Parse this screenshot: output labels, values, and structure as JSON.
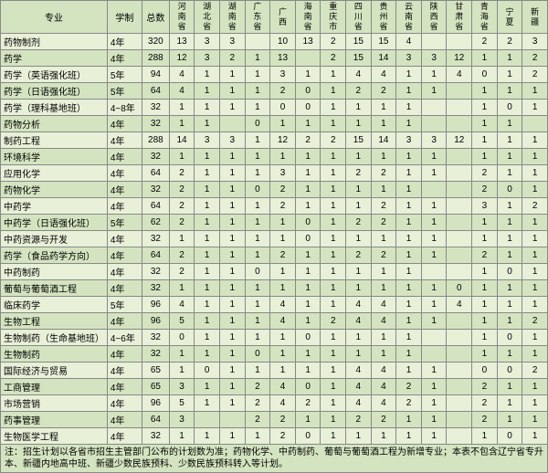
{
  "colors": {
    "even_row": "#e8f0d8",
    "odd_row": "#d4e4c0",
    "header_bg": "#d4e4c0",
    "note_bg": "#d4e4c0",
    "border": "#888888",
    "text": "#000000"
  },
  "headers": {
    "major": "专业",
    "duration": "学制",
    "total": "总数",
    "provinces": [
      "河南省",
      "湖北省",
      "湖南省",
      "广东省",
      "广西",
      "海南省",
      "重庆市",
      "四川省",
      "贵州省",
      "云南省",
      "陕西省",
      "甘肃省",
      "青海省",
      "宁夏",
      "新疆"
    ]
  },
  "rows": [
    {
      "major": "药物制剂",
      "dur": "4年",
      "total": 320,
      "vals": [
        13,
        3,
        3,
        "",
        10,
        13,
        2,
        15,
        15,
        4,
        "",
        "",
        2,
        2,
        3
      ]
    },
    {
      "major": "药学",
      "dur": "4年",
      "total": 288,
      "vals": [
        12,
        3,
        2,
        1,
        13,
        "",
        2,
        15,
        14,
        3,
        3,
        12,
        1,
        1,
        2
      ]
    },
    {
      "major": "药学（英语强化班）",
      "dur": "5年",
      "total": 94,
      "vals": [
        4,
        1,
        1,
        1,
        3,
        1,
        1,
        4,
        4,
        1,
        1,
        4,
        0,
        1,
        2
      ]
    },
    {
      "major": "药学（日语强化班）",
      "dur": "5年",
      "total": 64,
      "vals": [
        4,
        1,
        1,
        1,
        2,
        0,
        1,
        2,
        2,
        1,
        1,
        "",
        1,
        1,
        1
      ]
    },
    {
      "major": "药学（理科基地班）",
      "dur": "4~8年",
      "total": 32,
      "vals": [
        1,
        1,
        1,
        1,
        0,
        0,
        1,
        1,
        1,
        1,
        "",
        "",
        1,
        0,
        1
      ]
    },
    {
      "major": "药物分析",
      "dur": "4年",
      "total": 32,
      "vals": [
        1,
        1,
        "",
        0,
        1,
        1,
        1,
        1,
        1,
        1,
        "",
        "",
        1,
        1,
        ""
      ]
    },
    {
      "major": "制药工程",
      "dur": "4年",
      "total": 288,
      "vals": [
        14,
        3,
        3,
        1,
        12,
        2,
        2,
        15,
        14,
        3,
        3,
        12,
        1,
        1,
        1
      ]
    },
    {
      "major": "环境科学",
      "dur": "4年",
      "total": 32,
      "vals": [
        1,
        1,
        1,
        1,
        1,
        1,
        1,
        1,
        1,
        1,
        1,
        "",
        1,
        1,
        1
      ]
    },
    {
      "major": "应用化学",
      "dur": "4年",
      "total": 64,
      "vals": [
        2,
        1,
        1,
        1,
        3,
        1,
        1,
        2,
        2,
        1,
        1,
        "",
        2,
        1,
        1
      ]
    },
    {
      "major": "药物化学",
      "dur": "4年",
      "total": 32,
      "vals": [
        2,
        1,
        1,
        0,
        2,
        1,
        1,
        1,
        1,
        1,
        "",
        "",
        2,
        0,
        1
      ]
    },
    {
      "major": "中药学",
      "dur": "4年",
      "total": 64,
      "vals": [
        2,
        1,
        1,
        1,
        2,
        1,
        1,
        1,
        2,
        1,
        1,
        "",
        3,
        1,
        2
      ]
    },
    {
      "major": "中药学（日语强化班）",
      "dur": "5年",
      "total": 62,
      "vals": [
        2,
        1,
        1,
        1,
        1,
        0,
        1,
        2,
        2,
        1,
        1,
        "",
        1,
        1,
        1
      ]
    },
    {
      "major": "中药资源与开发",
      "dur": "4年",
      "total": 32,
      "vals": [
        1,
        1,
        1,
        1,
        1,
        0,
        1,
        1,
        1,
        1,
        1,
        "",
        1,
        1,
        1
      ]
    },
    {
      "major": "药学（食品药学方向）",
      "dur": "4年",
      "total": 64,
      "vals": [
        2,
        1,
        1,
        1,
        2,
        1,
        1,
        2,
        2,
        1,
        1,
        "",
        2,
        1,
        1
      ]
    },
    {
      "major": "中药制药",
      "dur": "4年",
      "total": 32,
      "vals": [
        2,
        1,
        1,
        0,
        1,
        1,
        1,
        1,
        1,
        1,
        "",
        "",
        1,
        0,
        1
      ]
    },
    {
      "major": "葡萄与葡萄酒工程",
      "dur": "4年",
      "total": 32,
      "vals": [
        1,
        1,
        1,
        1,
        1,
        1,
        1,
        1,
        1,
        1,
        1,
        0,
        1,
        1,
        1
      ]
    },
    {
      "major": "临床药学",
      "dur": "5年",
      "total": 96,
      "vals": [
        4,
        1,
        1,
        1,
        4,
        1,
        1,
        4,
        4,
        1,
        1,
        4,
        1,
        1,
        1
      ]
    },
    {
      "major": "生物工程",
      "dur": "4年",
      "total": 96,
      "vals": [
        5,
        1,
        1,
        1,
        4,
        1,
        2,
        4,
        4,
        1,
        1,
        "",
        1,
        1,
        2
      ]
    },
    {
      "major": "生物制药（生命基地班）",
      "dur": "4~6年",
      "total": 32,
      "vals": [
        0,
        1,
        1,
        1,
        1,
        0,
        1,
        1,
        1,
        1,
        "",
        "",
        1,
        0,
        1
      ]
    },
    {
      "major": "生物制药",
      "dur": "4年",
      "total": 32,
      "vals": [
        1,
        1,
        1,
        0,
        1,
        1,
        1,
        1,
        1,
        1,
        "",
        "",
        1,
        1,
        1
      ]
    },
    {
      "major": "国际经济与贸易",
      "dur": "4年",
      "total": 65,
      "vals": [
        1,
        0,
        1,
        1,
        1,
        1,
        1,
        4,
        4,
        1,
        1,
        "",
        0,
        0,
        2
      ]
    },
    {
      "major": "工商管理",
      "dur": "4年",
      "total": 65,
      "vals": [
        3,
        1,
        1,
        2,
        4,
        0,
        1,
        4,
        4,
        2,
        1,
        "",
        2,
        1,
        1
      ]
    },
    {
      "major": "市场营销",
      "dur": "4年",
      "total": 96,
      "vals": [
        5,
        1,
        1,
        2,
        4,
        2,
        1,
        4,
        4,
        2,
        1,
        "",
        2,
        1,
        1
      ]
    },
    {
      "major": "药事管理",
      "dur": "4年",
      "total": 64,
      "vals": [
        3,
        "",
        "",
        2,
        2,
        1,
        1,
        2,
        2,
        1,
        1,
        "",
        2,
        1,
        1
      ]
    },
    {
      "major": "生物医学工程",
      "dur": "4年",
      "total": 32,
      "vals": [
        1,
        1,
        1,
        1,
        2,
        0,
        1,
        1,
        1,
        1,
        1,
        "",
        1,
        0,
        1
      ]
    }
  ],
  "note": "注：招生计划以各省市招生主管部门公布的计划数为准；药物化学、中药制药、葡萄与葡萄酒工程为新增专业；本表不包含辽宁省专升本、新疆内地高中班、新疆少数民族预科、少数民族预科转入等计划。"
}
